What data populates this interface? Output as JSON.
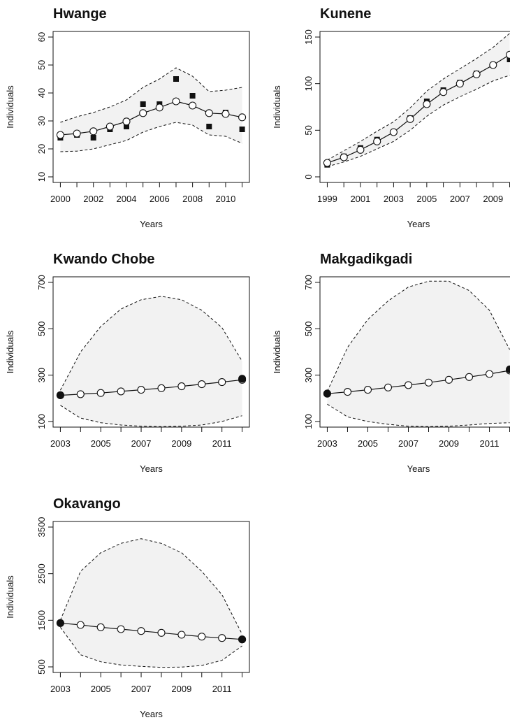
{
  "chart_data": [
    {
      "type": "line",
      "title": "Hwange",
      "xlabel": "Years",
      "ylabel": "Individuals",
      "xlim": [
        2000,
        2011
      ],
      "ylim": [
        10,
        60
      ],
      "xticks": [
        2000,
        2002,
        2004,
        2006,
        2008,
        2010
      ],
      "yticks": [
        10,
        20,
        30,
        40,
        50,
        60
      ],
      "x": [
        2000,
        2001,
        2002,
        2003,
        2004,
        2005,
        2006,
        2007,
        2008,
        2009,
        2010,
        2011
      ],
      "series": [
        {
          "role": "estimate",
          "marker": "open-circle",
          "values": [
            25,
            25.5,
            26.3,
            28,
            29.8,
            32.8,
            34.8,
            37,
            35.5,
            32.8,
            32.5,
            31.3
          ]
        },
        {
          "role": "observed",
          "marker": "filled-square",
          "values": [
            24,
            25,
            24,
            27,
            28,
            36,
            36,
            45,
            39,
            28,
            33,
            27
          ]
        },
        {
          "role": "upper-bound",
          "line": "dashed",
          "values": [
            29.5,
            31.5,
            33,
            35,
            37.5,
            42,
            45,
            49,
            46,
            40.5,
            41,
            42
          ]
        },
        {
          "role": "lower-bound",
          "line": "dashed",
          "values": [
            19,
            19.2,
            20,
            21.5,
            23,
            26,
            28,
            29.5,
            28.5,
            25,
            24.5,
            22
          ]
        }
      ]
    },
    {
      "type": "line",
      "title": "Kunene",
      "xlabel": "Years",
      "ylabel": "Individuals",
      "xlim": [
        1999,
        2010
      ],
      "ylim": [
        0,
        150
      ],
      "xticks": [
        1999,
        2001,
        2003,
        2005,
        2007,
        2009
      ],
      "yticks": [
        0,
        50,
        100,
        150
      ],
      "x": [
        1999,
        2000,
        2001,
        2002,
        2003,
        2004,
        2005,
        2006,
        2007,
        2008,
        2009,
        2010
      ],
      "series": [
        {
          "role": "estimate",
          "marker": "open-circle",
          "values": [
            15,
            21,
            29,
            38,
            48,
            62,
            78,
            91,
            100,
            110,
            120,
            131
          ]
        },
        {
          "role": "observed",
          "marker": "filled-square",
          "values": [
            13,
            22,
            31,
            40,
            48,
            63,
            81,
            93,
            101,
            111,
            120,
            126
          ]
        },
        {
          "role": "upper-bound",
          "line": "dashed",
          "values": [
            18,
            28,
            38,
            49,
            59,
            74,
            92,
            105,
            116,
            127,
            139,
            154
          ]
        },
        {
          "role": "lower-bound",
          "line": "dashed",
          "values": [
            11,
            16,
            22,
            30,
            38,
            50,
            65,
            77,
            86,
            94,
            103,
            109
          ]
        }
      ]
    },
    {
      "type": "line",
      "title": "Kwando Chobe",
      "xlabel": "Years",
      "ylabel": "Individuals",
      "xlim": [
        2003,
        2012
      ],
      "ylim": [
        100,
        700
      ],
      "xticks": [
        2003,
        2005,
        2007,
        2009,
        2011
      ],
      "yticks": [
        100,
        300,
        500,
        700
      ],
      "x": [
        2003,
        2004,
        2005,
        2006,
        2007,
        2008,
        2009,
        2010,
        2011,
        2012
      ],
      "series": [
        {
          "role": "estimate",
          "marker": "open-circle",
          "values": [
            213,
            218,
            223,
            230,
            237,
            244,
            252,
            261,
            270,
            280
          ]
        },
        {
          "role": "observed",
          "marker": "filled-circle",
          "values": [
            214,
            null,
            null,
            null,
            null,
            null,
            null,
            null,
            null,
            285
          ]
        },
        {
          "role": "upper-bound",
          "line": "dashed",
          "values": [
            235,
            400,
            510,
            585,
            625,
            640,
            625,
            580,
            505,
            360
          ]
        },
        {
          "role": "lower-bound",
          "line": "dashed",
          "values": [
            170,
            115,
            95,
            85,
            80,
            78,
            80,
            85,
            100,
            125
          ]
        }
      ]
    },
    {
      "type": "line",
      "title": "Makgadikgadi",
      "xlabel": "Years",
      "ylabel": "Individuals",
      "xlim": [
        2003,
        2012
      ],
      "ylim": [
        100,
        700
      ],
      "xticks": [
        2003,
        2005,
        2007,
        2009,
        2011
      ],
      "yticks": [
        100,
        300,
        500,
        700
      ],
      "x": [
        2003,
        2004,
        2005,
        2006,
        2007,
        2008,
        2009,
        2010,
        2011,
        2012
      ],
      "series": [
        {
          "role": "estimate",
          "marker": "open-circle",
          "values": [
            220,
            228,
            237,
            247,
            257,
            268,
            280,
            292,
            305,
            320
          ]
        },
        {
          "role": "observed",
          "marker": "filled-circle",
          "values": [
            221,
            null,
            null,
            null,
            null,
            null,
            null,
            null,
            null,
            325
          ]
        },
        {
          "role": "upper-bound",
          "line": "dashed",
          "values": [
            230,
            420,
            540,
            620,
            680,
            705,
            705,
            665,
            580,
            410
          ]
        },
        {
          "role": "lower-bound",
          "line": "dashed",
          "values": [
            175,
            120,
            100,
            88,
            80,
            78,
            80,
            85,
            92,
            95
          ]
        }
      ]
    },
    {
      "type": "line",
      "title": "Okavango",
      "xlabel": "Years",
      "ylabel": "Individuals",
      "xlim": [
        2003,
        2012
      ],
      "ylim": [
        500,
        3500
      ],
      "xticks": [
        2003,
        2005,
        2007,
        2009,
        2011
      ],
      "yticks": [
        500,
        1500,
        2500,
        3500
      ],
      "x": [
        2003,
        2004,
        2005,
        2006,
        2007,
        2008,
        2009,
        2010,
        2011,
        2012
      ],
      "series": [
        {
          "role": "estimate",
          "marker": "open-circle",
          "values": [
            1440,
            1400,
            1350,
            1310,
            1270,
            1230,
            1190,
            1150,
            1120,
            1090
          ]
        },
        {
          "role": "observed",
          "marker": "filled-circle",
          "values": [
            1440,
            null,
            null,
            null,
            null,
            null,
            null,
            null,
            null,
            1090
          ]
        },
        {
          "role": "upper-bound",
          "line": "dashed",
          "values": [
            1500,
            2550,
            2950,
            3150,
            3250,
            3150,
            2950,
            2550,
            2050,
            1200
          ]
        },
        {
          "role": "lower-bound",
          "line": "dashed",
          "values": [
            1350,
            760,
            610,
            540,
            510,
            490,
            495,
            530,
            640,
            950
          ]
        }
      ]
    }
  ],
  "colors": {
    "band_fill": "#f2f2f2",
    "line": "#111111",
    "marker_open": "#ffffff",
    "marker_filled": "#111111"
  }
}
